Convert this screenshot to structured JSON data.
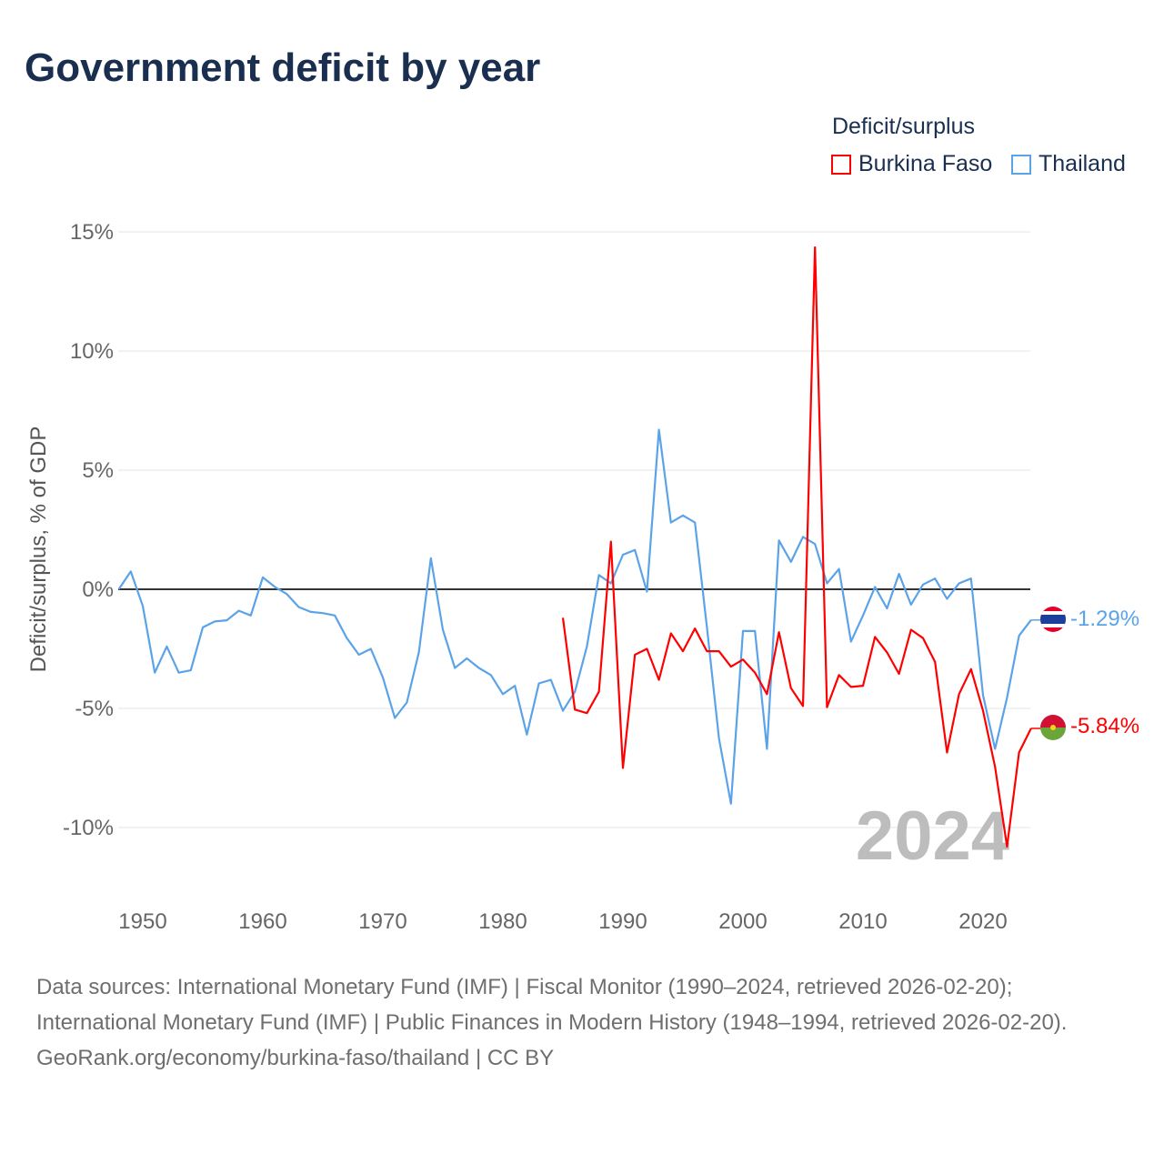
{
  "title": "Government deficit by year",
  "legend": {
    "title": "Deficit/surplus",
    "items": [
      {
        "name": "Burkina Faso",
        "color": "#ff0000"
      },
      {
        "name": "Thailand",
        "color": "#5ba3e8"
      }
    ]
  },
  "watermark_year": "2024",
  "end_labels": {
    "thailand": "-1.29%",
    "burkina_faso": "-5.84%"
  },
  "sources": [
    "Data sources: International Monetary Fund (IMF) | Fiscal Monitor (1990–2024, retrieved 2026-02-20); International Monetary Fund (IMF) | Public Finances in Modern History (1948–1994, retrieved 2026-02-20).",
    "GeoRank.org/economy/burkina-faso/thailand | CC BY"
  ],
  "chart_data": {
    "type": "line",
    "title": "Government deficit by year",
    "xlabel": "",
    "ylabel": "Deficit/surplus, % of GDP",
    "xlim": [
      1948,
      2024
    ],
    "ylim": [
      -12.5,
      15.5
    ],
    "x_ticks": [
      1950,
      1960,
      1970,
      1980,
      1990,
      2000,
      2010,
      2020
    ],
    "y_ticks": [
      {
        "v": 15,
        "label": "15%"
      },
      {
        "v": 10,
        "label": "10%"
      },
      {
        "v": 5,
        "label": "5%"
      },
      {
        "v": 0,
        "label": "0%"
      },
      {
        "v": -5,
        "label": "-5%"
      },
      {
        "v": -10,
        "label": "-10%"
      }
    ],
    "grid": true,
    "legend_position": "top-right",
    "series": [
      {
        "name": "Thailand",
        "color": "#5ba3e8",
        "start_year": 1948,
        "values": [
          0,
          0.75,
          -0.7,
          -3.5,
          -2.4,
          -3.5,
          -3.4,
          -1.6,
          -1.35,
          -1.3,
          -0.9,
          -1.1,
          0.5,
          0.1,
          -0.2,
          -0.75,
          -0.95,
          -1.0,
          -1.1,
          -2.05,
          -2.75,
          -2.5,
          -3.7,
          -5.4,
          -4.75,
          -2.65,
          1.3,
          -1.7,
          -3.3,
          -2.9,
          -3.3,
          -3.6,
          -4.4,
          -4.05,
          -6.1,
          -3.95,
          -3.8,
          -5.1,
          -4.3,
          -2.4,
          0.6,
          0.25,
          1.45,
          1.65,
          -0.1,
          6.7,
          2.8,
          3.1,
          2.8,
          -1.6,
          -6.25,
          -9.0,
          -1.75,
          -1.75,
          -6.7,
          2.05,
          1.15,
          2.2,
          1.9,
          0.25,
          0.85,
          -2.2,
          -1.1,
          0.1,
          -0.8,
          0.65,
          -0.65,
          0.2,
          0.45,
          -0.4,
          0.25,
          0.45,
          -4.45,
          -6.7,
          -4.55,
          -1.95,
          -1.29
        ]
      },
      {
        "name": "Burkina Faso",
        "color": "#ff0000",
        "start_year": 1985,
        "values": [
          -1.2,
          -5.05,
          -5.2,
          -4.3,
          2.0,
          -7.5,
          -2.75,
          -2.5,
          -3.8,
          -1.85,
          -2.6,
          -1.65,
          -2.6,
          -2.6,
          -3.25,
          -2.95,
          -3.5,
          -4.4,
          -1.8,
          -4.15,
          -4.9,
          14.35,
          -4.95,
          -3.6,
          -4.1,
          -4.05,
          -2.0,
          -2.65,
          -3.55,
          -1.7,
          -2.05,
          -3.05,
          -6.85,
          -4.4,
          -3.35,
          -5.1,
          -7.45,
          -10.8,
          -6.85,
          -5.84
        ]
      }
    ]
  }
}
